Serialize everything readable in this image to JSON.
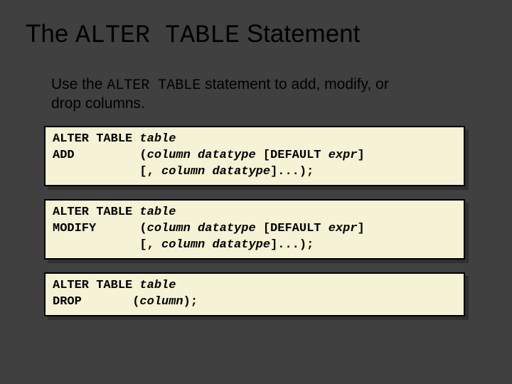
{
  "slide": {
    "background_color": "#404040",
    "title": {
      "prefix": "The ",
      "code": "ALTER TABLE",
      "suffix": " Statement",
      "fontsize": 35,
      "color": "#000000",
      "code_font": "Courier New"
    },
    "subtitle": {
      "prefix": "Use the ",
      "code": "ALTER TABLE",
      "suffix": " statement to add, modify, or drop columns.",
      "fontsize": 21,
      "color": "#000000"
    },
    "codeblocks": [
      {
        "lines": [
          {
            "parts": [
              {
                "t": "ALTER TABLE ",
                "i": false
              },
              {
                "t": "table",
                "i": true
              }
            ]
          },
          {
            "parts": [
              {
                "t": "ADD         (",
                "i": false
              },
              {
                "t": "column datatype",
                "i": true
              },
              {
                "t": " [DEFAULT ",
                "i": false
              },
              {
                "t": "expr",
                "i": true
              },
              {
                "t": "]",
                "i": false
              }
            ]
          },
          {
            "parts": [
              {
                "t": "            [, ",
                "i": false
              },
              {
                "t": "column datatype",
                "i": true
              },
              {
                "t": "]...);",
                "i": false
              }
            ]
          }
        ]
      },
      {
        "lines": [
          {
            "parts": [
              {
                "t": "ALTER TABLE ",
                "i": false
              },
              {
                "t": "table",
                "i": true
              }
            ]
          },
          {
            "parts": [
              {
                "t": "MODIFY      (",
                "i": false
              },
              {
                "t": "column datatype",
                "i": true
              },
              {
                "t": " [DEFAULT ",
                "i": false
              },
              {
                "t": "expr",
                "i": true
              },
              {
                "t": "]",
                "i": false
              }
            ]
          },
          {
            "parts": [
              {
                "t": "            [, ",
                "i": false
              },
              {
                "t": "column datatype",
                "i": true
              },
              {
                "t": "]...);",
                "i": false
              }
            ]
          }
        ]
      },
      {
        "lines": [
          {
            "parts": [
              {
                "t": "ALTER TABLE ",
                "i": false
              },
              {
                "t": "table",
                "i": true
              }
            ]
          },
          {
            "parts": [
              {
                "t": "DROP       (",
                "i": false
              },
              {
                "t": "column",
                "i": true
              },
              {
                "t": ");",
                "i": false
              }
            ]
          }
        ]
      }
    ],
    "codeblock_style": {
      "background_color": "#f5f2d5",
      "border_color": "#000000",
      "shadow_color": "#303030",
      "font": "Courier New",
      "fontsize": 17,
      "font_weight": "bold"
    }
  }
}
